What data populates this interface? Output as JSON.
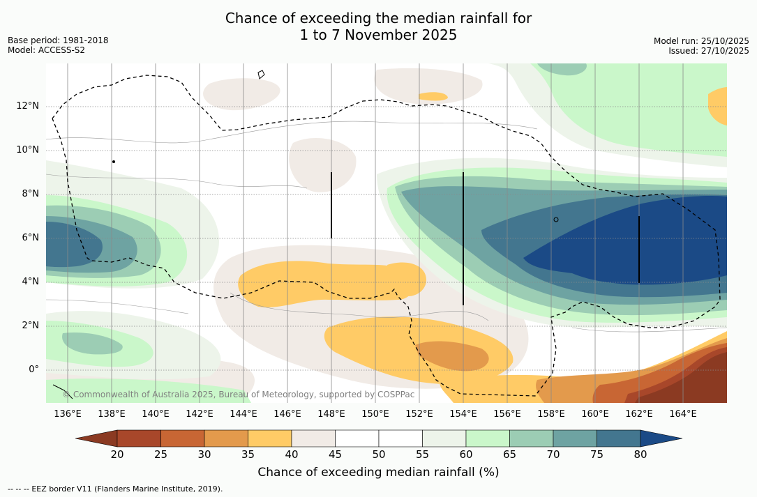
{
  "header": {
    "title_line1": "Chance of exceeding the median rainfall for",
    "title_line2": "1 to 7 November 2025",
    "base_period": "Base period: 1981-2018",
    "model": "Model: ACCESS-S2",
    "model_run": "Model run: 25/10/2025",
    "issued": "Issued: 27/10/2025"
  },
  "map": {
    "latitude_labels": [
      "12°N",
      "10°N",
      "8°N",
      "6°N",
      "4°N",
      "2°N",
      "0°"
    ],
    "longitude_labels": [
      "136°E",
      "138°E",
      "140°E",
      "142°E",
      "144°E",
      "146°E",
      "148°E",
      "150°E",
      "152°E",
      "154°E",
      "156°E",
      "158°E",
      "160°E",
      "162°E",
      "164°E"
    ],
    "credit": "© Commonwealth of Australia 2025, Bureau of Meteorology, supported by COSPPac"
  },
  "colorbar": {
    "title": "Chance of exceeding median rainfall (%)",
    "ticks": [
      "20",
      "25",
      "30",
      "35",
      "40",
      "45",
      "50",
      "55",
      "60",
      "65",
      "70",
      "75",
      "80"
    ],
    "below_color": "#8b3a22",
    "above_color": "#1b4a86",
    "bin_colors": [
      "#a8472a",
      "#c86634",
      "#e39a4c",
      "#ffcb66",
      "#f1ebe6",
      "#ffffff",
      "#ffffff",
      "#edf4ea",
      "#caf7ca",
      "#9ccdb4",
      "#6ea3a2",
      "#43768f"
    ]
  },
  "legend": {
    "eez_symbol": "--  --  --",
    "eez_text": "EEZ border V11 (Flanders Marine Institute, 2019)."
  }
}
